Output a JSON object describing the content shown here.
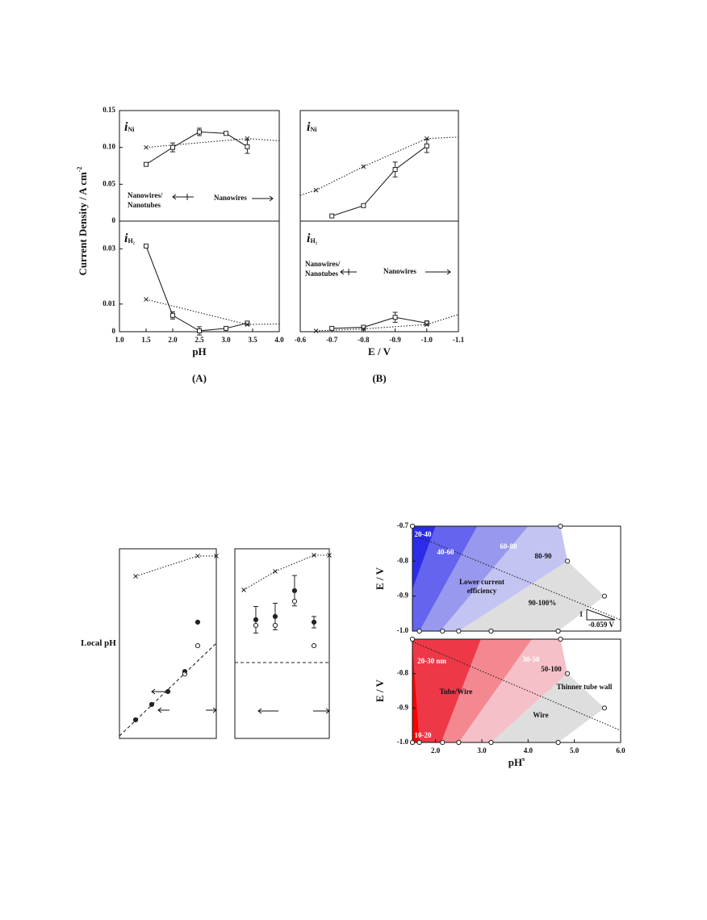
{
  "chart_data": [
    {
      "type": "line",
      "xlim": [
        1.0,
        4.0
      ],
      "ylim": [
        0,
        0.15
      ],
      "yticks": [
        0,
        0.05,
        {
          "value": 0.1,
          "label": "0.10"
        },
        0.15
      ],
      "label_main": "i",
      "label_sub": "Ni",
      "y_label": "Current Density / A cm",
      "y_label_sup": "-2",
      "annotations": [
        "Nanowires/",
        "Nanotubes",
        "Nanowires"
      ],
      "series": [
        {
          "x": [
            1.5,
            2.0,
            2.5,
            3.0,
            3.4
          ],
          "values": [
            0.077,
            0.1,
            0.121,
            0.119,
            0.101
          ],
          "errors": [
            0,
            0.006,
            0.005,
            0.002,
            0.009
          ],
          "marker": "square",
          "line": "solid",
          "color": "#222222"
        },
        {
          "x": [
            1.5,
            3.4
          ],
          "values": [
            0.1,
            0.112
          ],
          "marker": "cross",
          "line": "dotted",
          "color": "#222222"
        },
        {
          "x": [
            3.4,
            4.0
          ],
          "values": [
            0.112,
            0.109
          ],
          "line": "dotted",
          "color": "#222222"
        }
      ]
    },
    {
      "type": "line",
      "xlim": [
        1.0,
        4.0
      ],
      "ylim": [
        0,
        0.04
      ],
      "xticks": [
        {
          "value": 1,
          "label": "1.0"
        },
        1.5,
        {
          "value": 2,
          "label": "2.0"
        },
        2.5,
        {
          "value": 3,
          "label": "3.0"
        },
        3.5,
        {
          "value": 4,
          "label": "4.0"
        }
      ],
      "yticks": [
        0,
        0.01,
        0.03
      ],
      "label_main": "i",
      "label_sub": "H₂",
      "x_label": "pH",
      "caption": "(A)",
      "series": [
        {
          "x": [
            1.5,
            2.0,
            2.5,
            3.0,
            3.4
          ],
          "values": [
            0.031,
            0.0059,
            0.0003,
            0.0012,
            0.0031
          ],
          "errors": [
            0,
            0.0013,
            0.0015,
            0.0005,
            0.0007
          ],
          "marker": "square",
          "line": "solid",
          "color": "#222222"
        },
        {
          "x": [
            1.5,
            3.4
          ],
          "values": [
            0.0117,
            0.0026
          ],
          "marker": "cross",
          "line": "dotted",
          "color": "#222222"
        },
        {
          "x": [
            3.4,
            4.0
          ],
          "values": [
            0.0026,
            0.0028
          ],
          "line": "dotted",
          "color": "#222222"
        }
      ]
    },
    {
      "type": "line",
      "xlim": [
        -0.6,
        -1.1
      ],
      "ylim": [
        0,
        0.15
      ],
      "label_main": "i",
      "label_sub": "Ni",
      "series": [
        {
          "x": [
            -0.7,
            -0.8,
            -0.9,
            -1.0
          ],
          "values": [
            0.007,
            0.021,
            0.07,
            0.102
          ],
          "errors": [
            0,
            0,
            0.01,
            0.009
          ],
          "marker": "square",
          "line": "solid",
          "color": "#222222"
        },
        {
          "x": [
            -0.65,
            -0.8,
            -1.0
          ],
          "values": [
            0.042,
            0.074,
            0.112
          ],
          "marker": "cross",
          "line": "dotted",
          "color": "#222222"
        },
        {
          "x": [
            -0.6,
            -0.65,
            -0.8,
            -1.0,
            -1.1
          ],
          "values": [
            0.035,
            0.042,
            null,
            0.112,
            0.114
          ],
          "line": "dotted",
          "color": "#222222"
        }
      ]
    },
    {
      "type": "line",
      "xlim": [
        -0.6,
        -1.1
      ],
      "ylim": [
        0,
        0.04
      ],
      "xticks": [
        -0.6,
        -0.7,
        -0.8,
        -0.9,
        {
          "value": -1,
          "label": "-1.0"
        },
        -1.1
      ],
      "label_main": "i",
      "label_sub": "H₂",
      "x_label": "E / V",
      "caption": "(B)",
      "annotations": [
        "Nanowires/",
        "Nanotubes",
        "Nanowires"
      ],
      "series": [
        {
          "x": [
            -0.7,
            -0.8,
            -0.9,
            -1.0
          ],
          "values": [
            0.0012,
            0.0016,
            0.0052,
            0.0031
          ],
          "errors": [
            0.0005,
            0.0007,
            0.0018,
            0.0008
          ],
          "marker": "square",
          "line": "solid",
          "color": "#222222"
        },
        {
          "x": [
            -0.65,
            -0.8,
            -1.0
          ],
          "values": [
            0.0003,
            0.001,
            0.0026
          ],
          "marker": "cross",
          "line": "dotted",
          "color": "#222222"
        },
        {
          "x": [
            -1.0,
            -1.1
          ],
          "values": [
            0.0026,
            0.0062
          ],
          "line": "dotted",
          "color": "#222222"
        }
      ]
    },
    {
      "type": "scatter",
      "xlim": [
        0,
        100
      ],
      "ylim": [
        0,
        100
      ],
      "y_label": "Local pH",
      "series": [
        {
          "x": [
            16.7,
            80.8,
            100
          ],
          "values": [
            85.5,
            96.2,
            96.2
          ],
          "marker": "cross",
          "line": "dotted",
          "color": "#222222"
        },
        {
          "x": [
            16.7,
            33.3,
            50,
            67.5,
            80.8
          ],
          "values": [
            9.8,
            17.9,
            24.7,
            35.3,
            61.3
          ],
          "marker": "dot",
          "color": "#222222"
        },
        {
          "x": [
            67.5,
            80.8
          ],
          "values": [
            34,
            48.9
          ],
          "marker": "circle",
          "color": "#222222"
        },
        {
          "x": [
            0,
            100
          ],
          "values": [
            1.3,
            50.2
          ],
          "line": "dashed",
          "color": "#222222"
        }
      ]
    },
    {
      "type": "scatter",
      "xlim": [
        0,
        100
      ],
      "ylim": [
        0,
        100
      ],
      "series": [
        {
          "x": [
            9.4,
            42.7,
            83.8,
            100
          ],
          "values": [
            78.3,
            88.1,
            96.6,
            96.6
          ],
          "marker": "cross",
          "line": "dotted",
          "color": "#222222"
        },
        {
          "x": [
            22.2,
            42.7,
            63.2,
            83.8
          ],
          "values": [
            62.6,
            64.3,
            77.9,
            61.3
          ],
          "errors": [
            7,
            7,
            8,
            3
          ],
          "marker": "dot",
          "color": "#222222"
        },
        {
          "x": [
            22.2,
            42.7,
            63.2,
            83.8
          ],
          "values": [
            59.6,
            59.6,
            72.3,
            48.9
          ],
          "marker": "circle",
          "color": "#222222"
        },
        {
          "x": [
            0,
            100
          ],
          "values": [
            40,
            40
          ],
          "line": "dashed",
          "color": "#222222"
        }
      ]
    },
    {
      "type": "region",
      "xlim": [
        1.5,
        6.0
      ],
      "ylim": [
        -1.0,
        -0.7
      ],
      "yticks": [
        -0.7,
        -0.8,
        -0.9,
        {
          "value": -1,
          "label": "-1.0"
        }
      ],
      "y_label": "E / V",
      "annotations": [
        "Lower current",
        "efficiency",
        "1",
        "-0.059 V"
      ],
      "regions": [
        {
          "name": "80-90",
          "color": "#c4c4f2",
          "x": [
            1.5,
            1.5,
            4.7,
            4.85,
            2.5
          ],
          "y": [
            -1.0,
            -0.7,
            -0.7,
            -0.8,
            -1.0
          ]
        },
        {
          "name": "90-100%",
          "color": "#dedede",
          "x": [
            2.5,
            4.85,
            5.65,
            4.65
          ],
          "y": [
            -1.0,
            -0.8,
            -0.9,
            -1.0
          ]
        },
        {
          "name": "60-80",
          "color": "#9898ee",
          "x": [
            1.5,
            1.5,
            4.0,
            2.1
          ],
          "y": [
            -1.0,
            -0.7,
            -0.7,
            -1.0
          ]
        },
        {
          "name": "40-60",
          "color": "#6464ee",
          "x": [
            1.5,
            1.5,
            2.9,
            1.65
          ],
          "y": [
            -1.0,
            -0.7,
            -0.7,
            -1.0
          ]
        },
        {
          "name": "20-40",
          "color": "#2c2ce8",
          "x": [
            1.5,
            1.5,
            2.0
          ],
          "y": [
            -0.88,
            -0.7,
            -0.7
          ]
        }
      ],
      "series": [
        {
          "x": [
            1.5,
            6.0
          ],
          "values": [
            -0.723,
            -0.968
          ],
          "line": "dotted",
          "color": "#222222"
        },
        {
          "x": [
            1.5,
            4.7,
            4.85,
            5.65,
            1.65,
            2.15,
            2.5,
            3.2,
            4.65
          ],
          "values": [
            -0.7,
            -0.7,
            -0.8,
            -0.9,
            -1.0,
            -1.0,
            -1.0,
            -1.0,
            -1.0
          ],
          "marker": "circle",
          "color": "#222222"
        }
      ]
    },
    {
      "type": "region",
      "xlim": [
        1.5,
        6.0
      ],
      "ylim": [
        -1.0,
        -0.7
      ],
      "xticks": [
        {
          "value": 2,
          "label": "2.0"
        },
        {
          "value": 3,
          "label": "3.0"
        },
        {
          "value": 4,
          "label": "4.0"
        },
        {
          "value": 5,
          "label": "5.0"
        },
        {
          "value": 6,
          "label": "6.0"
        }
      ],
      "yticks": [
        -0.8,
        -0.9,
        {
          "value": -1,
          "label": "-1.0"
        }
      ],
      "y_label": "E / V",
      "x_label": "pH",
      "x_label_sup": "s",
      "annotations": [
        "Tube/Wire",
        "Thinner tube wall"
      ],
      "regions": [
        {
          "name": "50-100",
          "color": "#f6c0c8",
          "x": [
            1.5,
            1.5,
            4.7,
            4.85,
            3.2
          ],
          "y": [
            -1.0,
            -0.7,
            -0.7,
            -0.8,
            -1.0
          ]
        },
        {
          "name": "Wire",
          "color": "#dedede",
          "x": [
            3.2,
            4.85,
            5.65,
            4.65
          ],
          "y": [
            -1.0,
            -0.8,
            -0.9,
            -1.0
          ]
        },
        {
          "name": "30-50",
          "color": "#f48890",
          "x": [
            1.5,
            1.5,
            4.08,
            2.5
          ],
          "y": [
            -1.0,
            -0.7,
            -0.7,
            -1.0
          ]
        },
        {
          "name": "20-30 nm",
          "color": "#ee3848",
          "x": [
            1.5,
            1.5,
            2.98,
            2.12
          ],
          "y": [
            -1.0,
            -0.7,
            -0.7,
            -1.0
          ]
        },
        {
          "name": "10-20",
          "color": "#ff0000",
          "x": [
            1.5,
            1.5,
            1.65
          ],
          "y": [
            -1.0,
            -0.72,
            -1.0
          ]
        }
      ],
      "series": [
        {
          "x": [
            1.5,
            6.0
          ],
          "values": [
            -0.707,
            -0.965
          ],
          "line": "dotted",
          "color": "#222222"
        },
        {
          "x": [
            1.5,
            4.7,
            4.85,
            5.65,
            1.5,
            1.65,
            2.15,
            2.5,
            3.2,
            4.65
          ],
          "values": [
            -0.7,
            -0.7,
            -0.8,
            -0.9,
            -1.0,
            -1.0,
            -1.0,
            -1.0,
            -1.0,
            -1.0
          ],
          "marker": "circle",
          "color": "#222222"
        }
      ]
    }
  ]
}
